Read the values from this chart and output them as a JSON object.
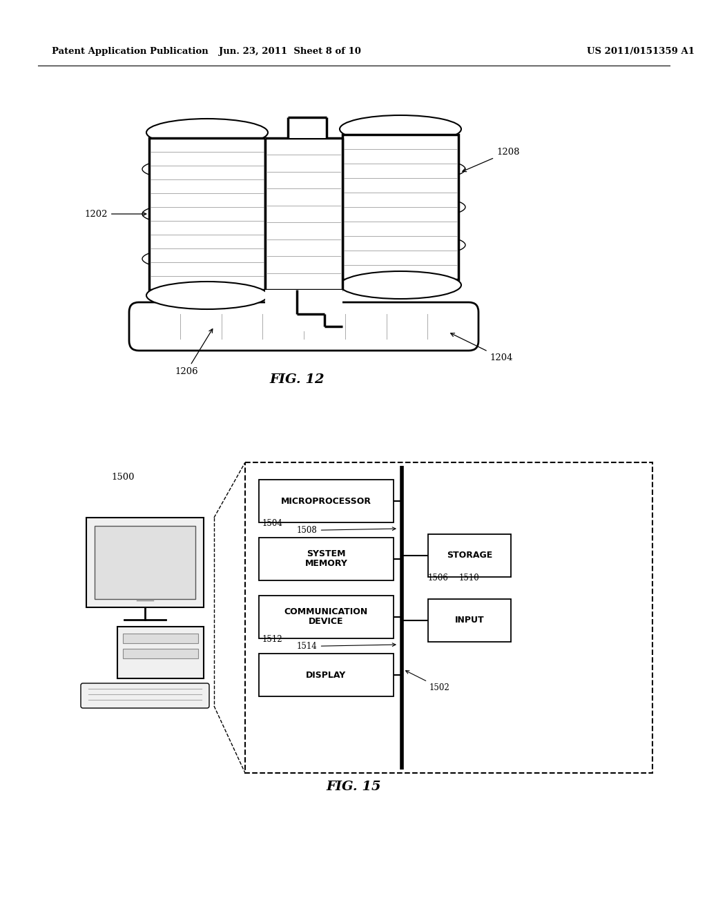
{
  "header_left": "Patent Application Publication",
  "header_mid": "Jun. 23, 2011  Sheet 8 of 10",
  "header_right": "US 2011/0151359 A1",
  "fig12_label": "FIG. 12",
  "fig15_label": "FIG. 15",
  "bg_color": "#ffffff",
  "line_color": "#000000"
}
